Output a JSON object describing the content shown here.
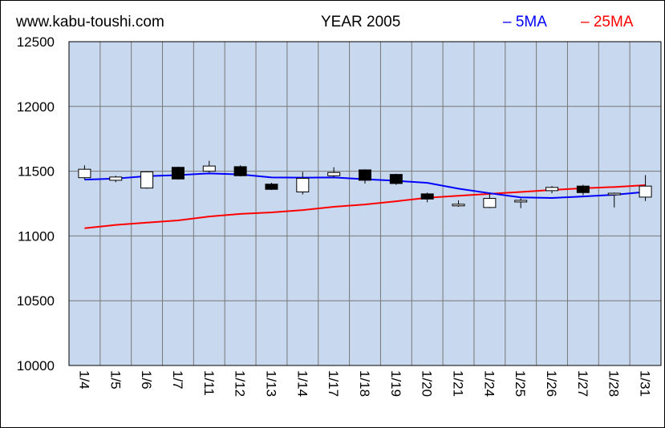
{
  "header": {
    "site": "www.kabu-toushi.com",
    "title": "YEAR 2005"
  },
  "colors": {
    "plot_bg": "#c8d8ee",
    "grid": "#777777",
    "ma5": "#0000ff",
    "ma25": "#ff0000",
    "up_fill": "#ffffff",
    "down_fill": "#000000"
  },
  "chart_data": {
    "type": "candlestick",
    "title": "YEAR 2005",
    "ylim": [
      10000,
      12500
    ],
    "yticks": [
      "10000",
      "10500",
      "11000",
      "11500",
      "12000",
      "12500"
    ],
    "grid": true,
    "legend_position": "top-right",
    "categories": [
      "1/4",
      "1/5",
      "1/6",
      "1/7",
      "1/11",
      "1/12",
      "1/13",
      "1/14",
      "1/17",
      "1/18",
      "1/19",
      "1/20",
      "1/21",
      "1/24",
      "1/25",
      "1/26",
      "1/27",
      "1/28",
      "1/31"
    ],
    "candles": [
      {
        "open": 11450,
        "close": 11515,
        "high": 11545,
        "low": 11435
      },
      {
        "open": 11430,
        "close": 11455,
        "high": 11465,
        "low": 11415
      },
      {
        "open": 11370,
        "close": 11495,
        "high": 11500,
        "low": 11365
      },
      {
        "open": 11530,
        "close": 11440,
        "high": 11535,
        "low": 11435
      },
      {
        "open": 11500,
        "close": 11540,
        "high": 11580,
        "low": 11490
      },
      {
        "open": 11535,
        "close": 11465,
        "high": 11545,
        "low": 11460
      },
      {
        "open": 11400,
        "close": 11360,
        "high": 11410,
        "low": 11355
      },
      {
        "open": 11340,
        "close": 11445,
        "high": 11495,
        "low": 11320
      },
      {
        "open": 11465,
        "close": 11490,
        "high": 11530,
        "low": 11455
      },
      {
        "open": 11510,
        "close": 11430,
        "high": 11515,
        "low": 11405
      },
      {
        "open": 11475,
        "close": 11405,
        "high": 11480,
        "low": 11395
      },
      {
        "open": 11325,
        "close": 11285,
        "high": 11335,
        "low": 11260
      },
      {
        "open": 11235,
        "close": 11245,
        "high": 11275,
        "low": 11225
      },
      {
        "open": 11220,
        "close": 11290,
        "high": 11330,
        "low": 11215
      },
      {
        "open": 11265,
        "close": 11275,
        "high": 11290,
        "low": 11215
      },
      {
        "open": 11350,
        "close": 11375,
        "high": 11385,
        "low": 11330
      },
      {
        "open": 11385,
        "close": 11335,
        "high": 11395,
        "low": 11315
      },
      {
        "open": 11320,
        "close": 11330,
        "high": 11335,
        "low": 11220
      },
      {
        "open": 11300,
        "close": 11385,
        "high": 11470,
        "low": 11270
      }
    ],
    "series": [
      {
        "name": "5MA",
        "values": [
          11435,
          11443,
          11462,
          11470,
          11483,
          11475,
          11452,
          11450,
          11452,
          11438,
          11426,
          11410,
          11365,
          11330,
          11298,
          11293,
          11305,
          11318,
          11340
        ]
      },
      {
        "name": "25MA",
        "values": [
          11060,
          11085,
          11103,
          11120,
          11150,
          11170,
          11182,
          11200,
          11225,
          11243,
          11268,
          11295,
          11310,
          11325,
          11340,
          11355,
          11368,
          11378,
          11392
        ]
      }
    ]
  }
}
